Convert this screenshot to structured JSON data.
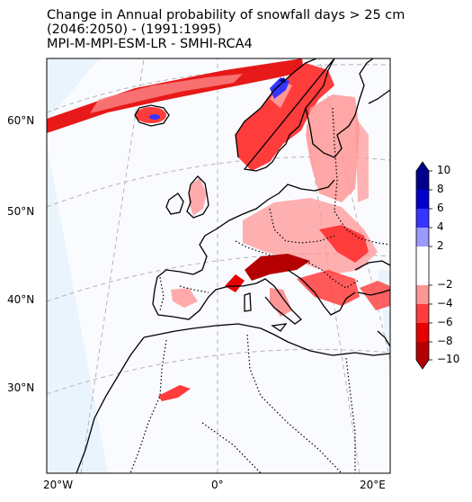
{
  "title": {
    "line1": "Change in Annual probability of snowfall days > 25 cm",
    "line2": "(2046:2050) - (1991:1995)",
    "line3": "MPI-M-MPI-ESM-LR - SMHI-RCA4"
  },
  "lat_labels": [
    "60°N",
    "50°N",
    "40°N",
    "30°N"
  ],
  "lon_labels": [
    "20°W",
    "0°",
    "20°E"
  ],
  "colorbar": {
    "tick_labels": [
      "10",
      "8",
      "6",
      "4",
      "2",
      "−2",
      "−4",
      "−6",
      "−8",
      "−10"
    ],
    "levels": [
      10,
      8,
      6,
      4,
      2,
      -2,
      -4,
      -6,
      -8,
      -10
    ],
    "colors": {
      "pos_10_8": "#00008b",
      "pos_8_6": "#0000cd",
      "pos_6_4": "#3535ff",
      "pos_4_2": "#9a9aff",
      "neutral": "#ffffff",
      "neg_2_4": "#ff9696",
      "neg_4_6": "#ff3c3c",
      "neg_6_8": "#e60000",
      "neg_8_10": "#b40000"
    }
  },
  "colors": {
    "domain_fill": "#eef6fc",
    "gridline": "#b4b4b4",
    "coast": "#000000"
  }
}
